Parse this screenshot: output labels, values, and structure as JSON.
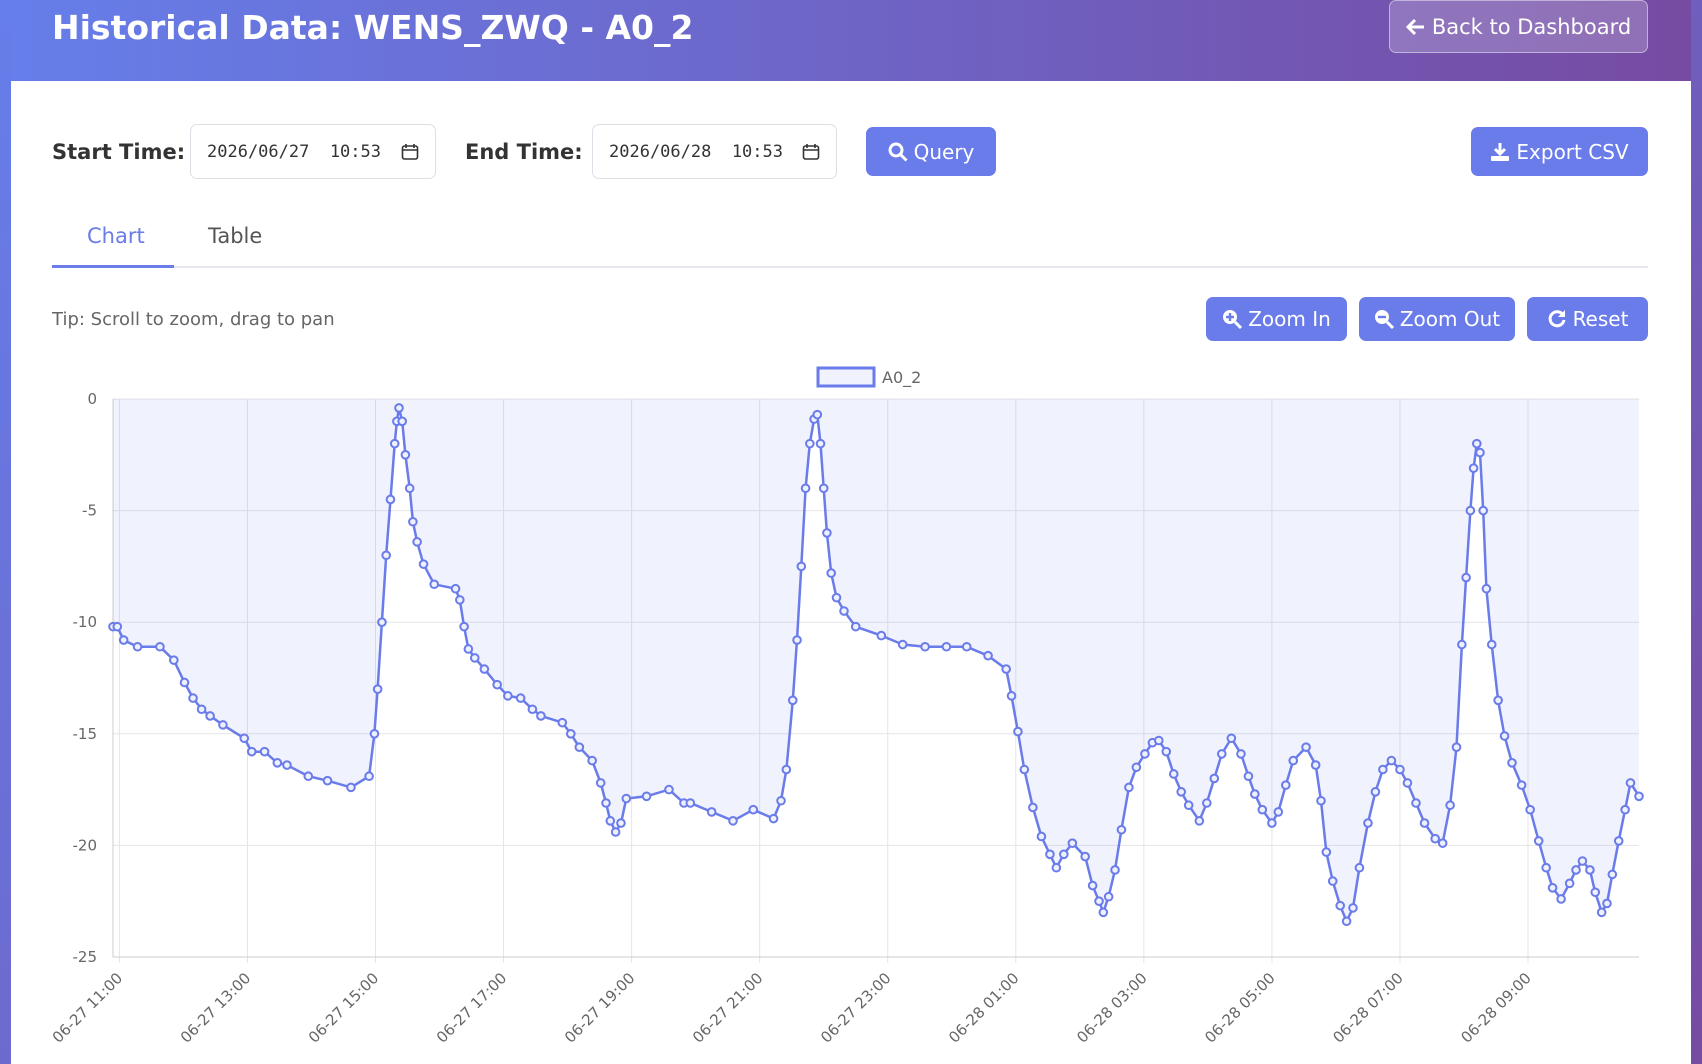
{
  "header": {
    "title": "Historical Data: WENS_ZWQ - A0_2",
    "back_button": "Back to Dashboard"
  },
  "query": {
    "start_label": "Start Time:",
    "start_value": "2026/06/27  10:53",
    "end_label": "End Time:",
    "end_value": "2026/06/28  10:53",
    "query_button": "Query",
    "export_button": "Export CSV"
  },
  "tabs": [
    "Chart",
    "Table"
  ],
  "tip": "Tip: Scroll to zoom, drag to pan",
  "zoom": {
    "zoom_in": "Zoom In",
    "zoom_out": "Zoom Out",
    "reset": "Reset"
  },
  "chart_data": {
    "type": "line",
    "x": [
      "06-27 10:54",
      "06-27 10:58",
      "06-27 11:04",
      "06-27 11:17",
      "06-27 11:38",
      "06-27 11:51",
      "06-27 12:01",
      "06-27 12:09",
      "06-27 12:17",
      "06-27 12:25",
      "06-27 12:37",
      "06-27 12:57",
      "06-27 13:04",
      "06-27 13:16",
      "06-27 13:28",
      "06-27 13:37",
      "06-27 13:57",
      "06-27 14:15",
      "06-27 14:37",
      "06-27 14:54",
      "06-27 14:59",
      "06-27 15:02",
      "06-27 15:06",
      "06-27 15:10",
      "06-27 15:14",
      "06-27 15:18",
      "06-27 15:20",
      "06-27 15:22",
      "06-27 15:25",
      "06-27 15:28",
      "06-27 15:32",
      "06-27 15:35",
      "06-27 15:39",
      "06-27 15:45",
      "06-27 15:55",
      "06-27 16:15",
      "06-27 16:19",
      "06-27 16:23",
      "06-27 16:27",
      "06-27 16:33",
      "06-27 16:42",
      "06-27 16:54",
      "06-27 17:04",
      "06-27 17:16",
      "06-27 17:27",
      "06-27 17:35",
      "06-27 17:55",
      "06-27 18:03",
      "06-27 18:11",
      "06-27 18:23",
      "06-27 18:31",
      "06-27 18:36",
      "06-27 18:40",
      "06-27 18:45",
      "06-27 18:50",
      "06-27 18:55",
      "06-27 19:14",
      "06-27 19:35",
      "06-27 19:49",
      "06-27 19:55",
      "06-27 20:15",
      "06-27 20:35",
      "06-27 20:54",
      "06-27 21:13",
      "06-27 21:20",
      "06-27 21:25",
      "06-27 21:31",
      "06-27 21:35",
      "06-27 21:39",
      "06-27 21:43",
      "06-27 21:47",
      "06-27 21:51",
      "06-27 21:54",
      "06-27 21:57",
      "06-27 22:00",
      "06-27 22:03",
      "06-27 22:07",
      "06-27 22:12",
      "06-27 22:19",
      "06-27 22:30",
      "06-27 22:54",
      "06-27 23:14",
      "06-27 23:35",
      "06-27 23:55",
      "06-28 00:14",
      "06-28 00:34",
      "06-28 00:51",
      "06-28 00:56",
      "06-28 01:02",
      "06-28 01:08",
      "06-28 01:16",
      "06-28 01:24",
      "06-28 01:32",
      "06-28 01:38",
      "06-28 01:45",
      "06-28 01:53",
      "06-28 02:05",
      "06-28 02:12",
      "06-28 02:18",
      "06-28 02:22",
      "06-28 02:27",
      "06-28 02:33",
      "06-28 02:39",
      "06-28 02:46",
      "06-28 02:53",
      "06-28 03:01",
      "06-28 03:08",
      "06-28 03:14",
      "06-28 03:21",
      "06-28 03:28",
      "06-28 03:35",
      "06-28 03:42",
      "06-28 03:52",
      "06-28 03:59",
      "06-28 04:06",
      "06-28 04:13",
      "06-28 04:22",
      "06-28 04:31",
      "06-28 04:38",
      "06-28 04:44",
      "06-28 04:51",
      "06-28 05:00",
      "06-28 05:06",
      "06-28 05:13",
      "06-28 05:20",
      "06-28 05:32",
      "06-28 05:41",
      "06-28 05:46",
      "06-28 05:51",
      "06-28 05:57",
      "06-28 06:04",
      "06-28 06:10",
      "06-28 06:16",
      "06-28 06:22",
      "06-28 06:30",
      "06-28 06:37",
      "06-28 06:44",
      "06-28 06:52",
      "06-28 07:00",
      "06-28 07:07",
      "06-28 07:15",
      "06-28 07:23",
      "06-28 07:33",
      "06-28 07:40",
      "06-28 07:47",
      "06-28 07:53",
      "06-28 07:58",
      "06-28 08:02",
      "06-28 08:06",
      "06-28 08:09",
      "06-28 08:12",
      "06-28 08:15",
      "06-28 08:18",
      "06-28 08:21",
      "06-28 08:26",
      "06-28 08:32",
      "06-28 08:38",
      "06-28 08:45",
      "06-28 08:54",
      "06-28 09:02",
      "06-28 09:10",
      "06-28 09:17",
      "06-28 09:23",
      "06-28 09:31",
      "06-28 09:39",
      "06-28 09:45",
      "06-28 09:51",
      "06-28 09:58",
      "06-28 10:03",
      "06-28 10:09",
      "06-28 10:14",
      "06-28 10:19",
      "06-28 10:25",
      "06-28 10:31",
      "06-28 10:36",
      "06-28 10:44"
    ],
    "series": [
      {
        "name": "A0_2",
        "color": "#6a7bea",
        "fill": "rgba(106,123,234,0.1)",
        "values": [
          -10.2,
          -10.2,
          -10.8,
          -11.1,
          -11.1,
          -11.7,
          -12.7,
          -13.4,
          -13.9,
          -14.2,
          -14.6,
          -15.2,
          -15.8,
          -15.8,
          -16.3,
          -16.4,
          -16.9,
          -17.1,
          -17.4,
          -16.9,
          -15,
          -13,
          -10,
          -7,
          -4.5,
          -2,
          -1,
          -0.4,
          -1,
          -2.5,
          -4,
          -5.5,
          -6.4,
          -7.4,
          -8.3,
          -8.5,
          -9,
          -10.2,
          -11.2,
          -11.6,
          -12.1,
          -12.8,
          -13.3,
          -13.4,
          -13.9,
          -14.2,
          -14.5,
          -15,
          -15.6,
          -16.2,
          -17.2,
          -18.1,
          -18.9,
          -19.4,
          -19,
          -17.9,
          -17.8,
          -17.5,
          -18.1,
          -18.1,
          -18.5,
          -18.9,
          -18.4,
          -18.8,
          -18,
          -16.6,
          -13.5,
          -10.8,
          -7.5,
          -4,
          -2,
          -0.9,
          -0.7,
          -2,
          -4,
          -6,
          -7.8,
          -8.9,
          -9.5,
          -10.2,
          -10.6,
          -11,
          -11.1,
          -11.1,
          -11.1,
          -11.5,
          -12.1,
          -13.3,
          -14.9,
          -16.6,
          -18.3,
          -19.6,
          -20.4,
          -21,
          -20.4,
          -19.9,
          -20.5,
          -21.8,
          -22.5,
          -23,
          -22.3,
          -21.1,
          -19.3,
          -17.4,
          -16.5,
          -15.9,
          -15.4,
          -15.3,
          -15.8,
          -16.8,
          -17.6,
          -18.2,
          -18.9,
          -18.1,
          -17,
          -15.9,
          -15.2,
          -15.9,
          -16.9,
          -17.7,
          -18.4,
          -19,
          -18.5,
          -17.3,
          -16.2,
          -15.6,
          -16.4,
          -18,
          -20.3,
          -21.6,
          -22.7,
          -23.4,
          -22.8,
          -21,
          -19,
          -17.6,
          -16.6,
          -16.2,
          -16.6,
          -17.2,
          -18.1,
          -19,
          -19.7,
          -19.9,
          -18.2,
          -15.6,
          -11,
          -8,
          -5,
          -3.1,
          -2,
          -2.4,
          -5,
          -8.5,
          -11,
          -13.5,
          -15.1,
          -16.3,
          -17.3,
          -18.4,
          -19.8,
          -21,
          -21.9,
          -22.4,
          -21.7,
          -21.1,
          -20.7,
          -21.1,
          -22.1,
          -23,
          -22.6,
          -21.3,
          -19.8,
          -18.4,
          -17.2,
          -17.8
        ]
      }
    ],
    "xlim": [
      "06-27 10:54",
      "06-28 10:44"
    ],
    "xticks": [
      "06-27 11:00",
      "06-27 13:00",
      "06-27 15:00",
      "06-27 17:00",
      "06-27 19:00",
      "06-27 21:00",
      "06-27 23:00",
      "06-28 01:00",
      "06-28 03:00",
      "06-28 05:00",
      "06-28 07:00",
      "06-28 09:00"
    ],
    "ylim": [
      -25,
      0
    ],
    "yticks": [
      0,
      -5,
      -10,
      -15,
      -20,
      -25
    ],
    "grid": true,
    "legend": "top"
  }
}
